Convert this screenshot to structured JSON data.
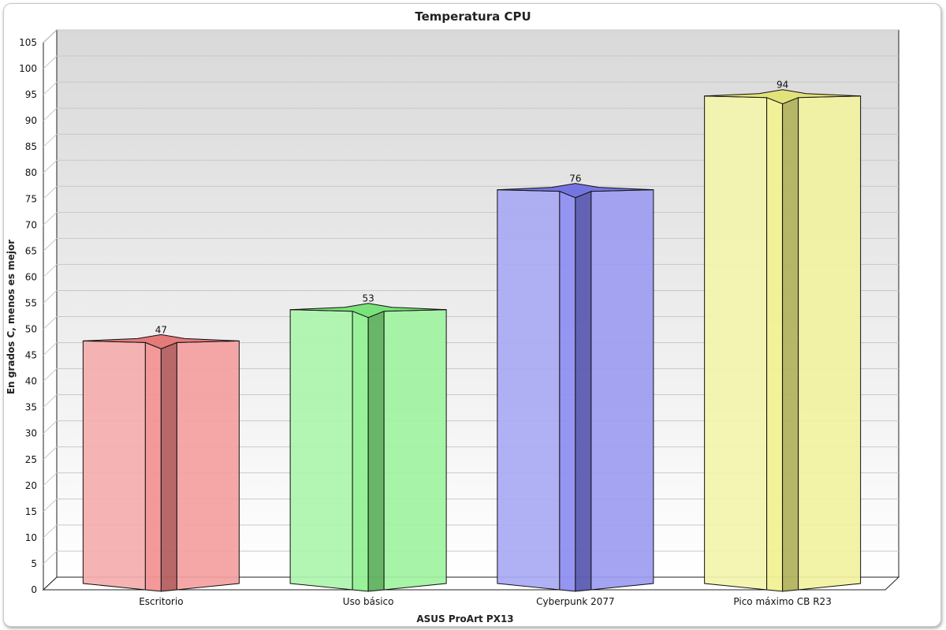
{
  "chart_data": {
    "type": "bar",
    "title": "Temperatura CPU",
    "xlabel": "ASUS ProArt PX13",
    "ylabel": "En grados C, menos es mejor",
    "ylim": [
      0,
      105
    ],
    "ytick_step": 5,
    "categories": [
      "Escritorio",
      "Uso básico",
      "Cyberpunk 2077",
      "Pico máximo CB R23"
    ],
    "values": [
      47,
      53,
      76,
      94
    ],
    "colors": [
      "#f08080",
      "#80ee80",
      "#7b7bee",
      "#eeee80"
    ],
    "grid": true,
    "legend": "none",
    "style": "3d-star-columns"
  }
}
